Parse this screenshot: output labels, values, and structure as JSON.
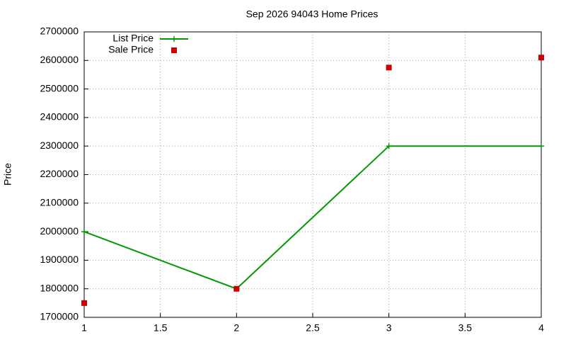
{
  "chart_data": {
    "type": "line",
    "title": "Sep 2026 94043 Home Prices",
    "y_label": "Price",
    "x": [
      1,
      2,
      3,
      4
    ],
    "series": [
      {
        "name": "List Price",
        "color": "#009900",
        "style": "linespoints",
        "values": [
          2000000,
          1800000,
          2300000,
          2300000
        ]
      },
      {
        "name": "Sale Price",
        "color": "#cc0000",
        "style": "points",
        "values": [
          1750000,
          1800000,
          2575000,
          2610000
        ]
      }
    ],
    "xlim": [
      1,
      4
    ],
    "xticks": [
      1,
      1.5,
      2,
      2.5,
      3,
      3.5,
      4
    ],
    "ylim": [
      1700000,
      2700000
    ],
    "yticks": [
      1700000,
      1800000,
      1900000,
      2000000,
      2100000,
      2200000,
      2300000,
      2400000,
      2500000,
      2600000,
      2700000
    ],
    "grid": true,
    "legend": "top-left"
  }
}
